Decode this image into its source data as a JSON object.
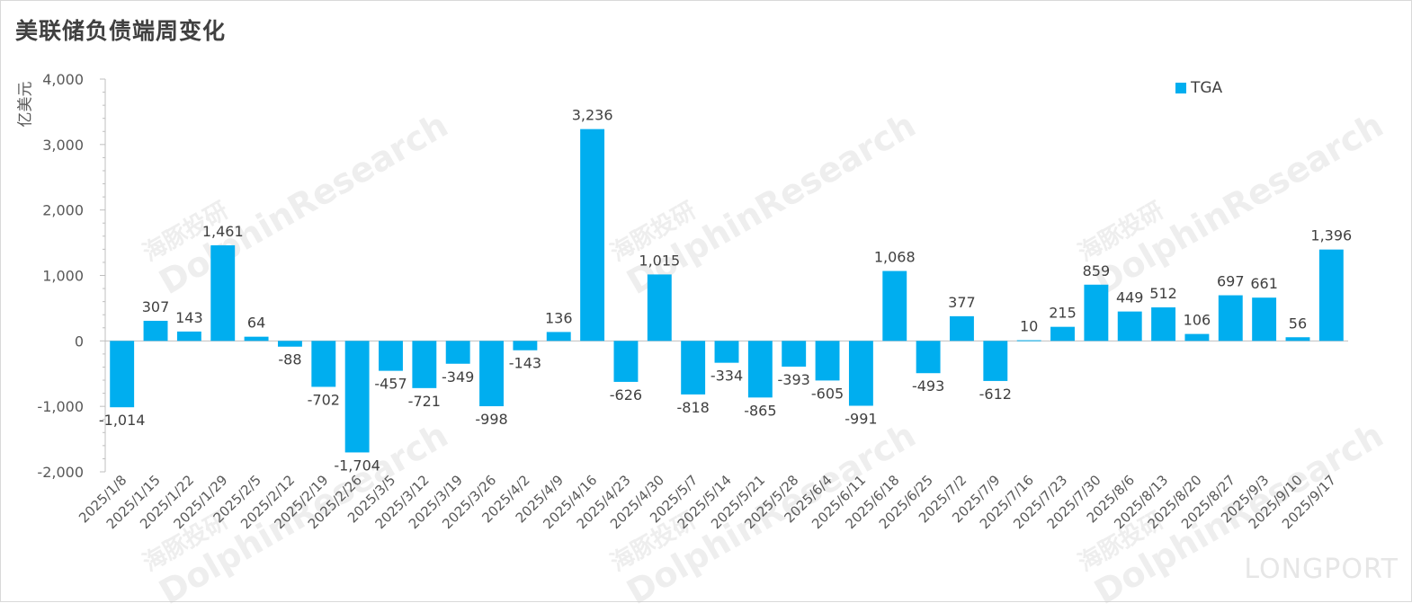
{
  "title": "美联储负债端周变化",
  "watermark": {
    "cn": "海豚投研",
    "en": "DolphinResearch",
    "brand": "LONGPORT"
  },
  "colors": {
    "bar": "#00AEEF",
    "axis": "#bfbfbf",
    "text": "#404040"
  },
  "chart_data": {
    "type": "bar",
    "title": "美联储负债端周变化",
    "ylabel": "亿美元",
    "xlabel": "",
    "ylim": [
      -2000,
      4000
    ],
    "yticks": [
      -2000,
      -1000,
      0,
      1000,
      2000,
      3000,
      4000
    ],
    "ytick_labels": [
      "-2,000",
      "-1,000",
      "0",
      "1,000",
      "2,000",
      "3,000",
      "4,000"
    ],
    "legend_position": "top-right",
    "grid": false,
    "categories": [
      "2025/1/8",
      "2025/1/15",
      "2025/1/22",
      "2025/1/29",
      "2025/2/5",
      "2025/2/12",
      "2025/2/19",
      "2025/2/26",
      "2025/3/5",
      "2025/3/12",
      "2025/3/19",
      "2025/3/26",
      "2025/4/2",
      "2025/4/9",
      "2025/4/16",
      "2025/4/23",
      "2025/4/30",
      "2025/5/7",
      "2025/5/14",
      "2025/5/21",
      "2025/5/28",
      "2025/6/4",
      "2025/6/11",
      "2025/6/18",
      "2025/6/25",
      "2025/7/2",
      "2025/7/9",
      "2025/7/16",
      "2025/7/23",
      "2025/7/30",
      "2025/8/6",
      "2025/8/13",
      "2025/8/20",
      "2025/8/27",
      "2025/9/3",
      "2025/9/10",
      "2025/9/17"
    ],
    "series": [
      {
        "name": "TGA",
        "values": [
          -1014,
          307,
          143,
          1461,
          64,
          -88,
          -702,
          -1704,
          -457,
          -721,
          -349,
          -998,
          -143,
          136,
          3236,
          -626,
          1015,
          -818,
          -334,
          -865,
          -393,
          -605,
          -991,
          1068,
          -493,
          377,
          -612,
          10,
          215,
          859,
          449,
          512,
          106,
          697,
          661,
          56,
          1396
        ],
        "labels": [
          "-1,014",
          "307",
          "143",
          "1,461",
          "64",
          "-88",
          "-702",
          "-1,704",
          "-457",
          "-721",
          "-349",
          "-998",
          "-143",
          "136",
          "3,236",
          "-626",
          "1,015",
          "-818",
          "-334",
          "-865",
          "-393",
          "-605",
          "-991",
          "1,068",
          "-493",
          "377",
          "-612",
          "10",
          "215",
          "859",
          "449",
          "512",
          "106",
          "697",
          "661",
          "56",
          "1,396"
        ]
      }
    ]
  }
}
